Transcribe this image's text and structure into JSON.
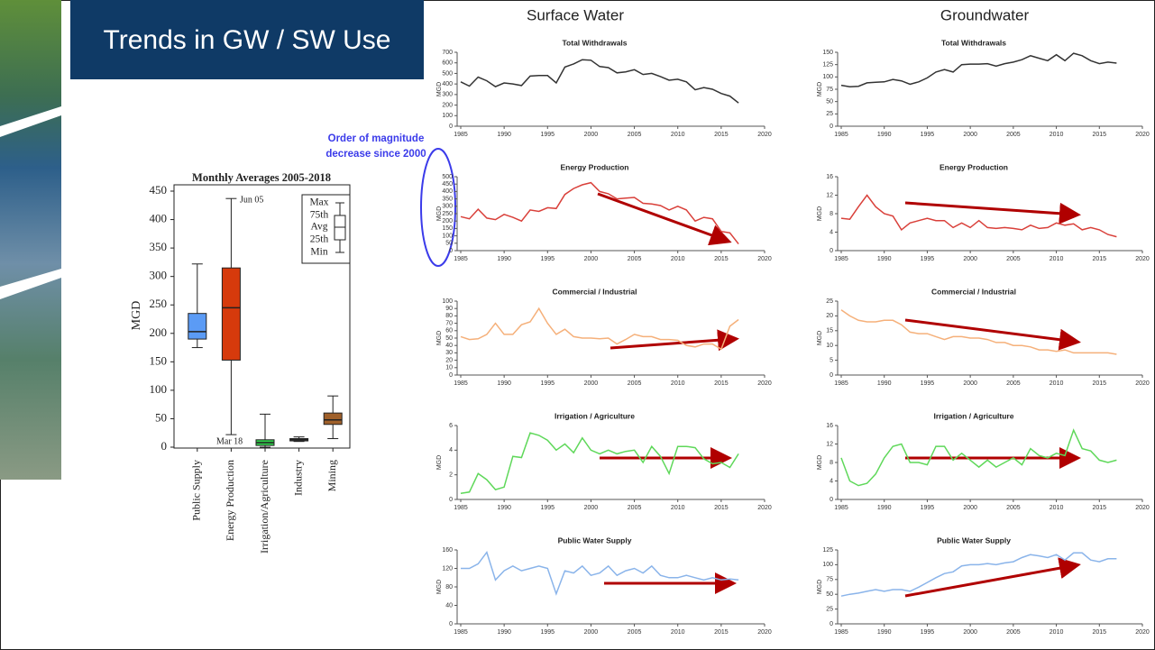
{
  "slide": {
    "title": "Trends in GW / SW Use",
    "columns": [
      "Surface Water",
      "Groundwater"
    ],
    "annotation": [
      "Order of magnitude",
      "decrease since 2000"
    ]
  },
  "chart_data": [
    {
      "type": "box",
      "title": "Monthly Averages 2005-2018",
      "ylabel": "MGD",
      "categories": [
        "Public Supply",
        "Energy Production",
        "Irrigation/Agriculture",
        "Industry",
        "Mining"
      ],
      "boxes": [
        {
          "min": 175,
          "q1": 190,
          "median": 203,
          "q3": 235,
          "max": 322
        },
        {
          "min": 22,
          "q1": 153,
          "median": 245,
          "q3": 315,
          "max": 437
        },
        {
          "min": 0,
          "q1": 3,
          "median": 8,
          "q3": 13,
          "max": 58
        },
        {
          "min": 10,
          "q1": 11,
          "median": 13,
          "q3": 15,
          "max": 18
        },
        {
          "min": 15,
          "q1": 40,
          "median": 48,
          "q3": 60,
          "max": 90
        }
      ],
      "colors": [
        "#5b9bf5",
        "#d63a0c",
        "#2fcf4a",
        "#9a9a9a",
        "#a0602a"
      ],
      "annotations": [
        "Jun 05",
        "Mar 18"
      ],
      "legend_labels": [
        "Max",
        "75th",
        "Avg",
        "25th",
        "Min"
      ],
      "ylim": [
        0,
        450
      ],
      "yticks": [
        0,
        50,
        100,
        150,
        200,
        250,
        300,
        350,
        400,
        450
      ]
    },
    {
      "type": "line",
      "title": "Total Withdrawals",
      "ylabel": "MGD",
      "color": "#333333",
      "x": [
        1985,
        1986,
        1987,
        1988,
        1989,
        1990,
        1991,
        1992,
        1993,
        1994,
        1995,
        1996,
        1997,
        1998,
        1999,
        2000,
        2001,
        2002,
        2003,
        2004,
        2005,
        2006,
        2007,
        2008,
        2009,
        2010,
        2011,
        2012,
        2013,
        2014,
        2015,
        2016,
        2017
      ],
      "values": [
        420,
        380,
        465,
        430,
        375,
        410,
        400,
        385,
        475,
        480,
        480,
        410,
        560,
        590,
        630,
        625,
        565,
        555,
        505,
        515,
        535,
        490,
        500,
        470,
        435,
        445,
        420,
        345,
        365,
        350,
        310,
        285,
        220
      ],
      "xlim": [
        1985,
        2020
      ],
      "xticks": [
        1985,
        1990,
        1995,
        2000,
        2005,
        2010,
        2015,
        2020
      ],
      "ylim": [
        0,
        700
      ],
      "yticks": [
        0,
        100,
        200,
        300,
        400,
        500,
        600,
        700
      ]
    },
    {
      "type": "line",
      "title": "Total Withdrawals",
      "ylabel": "MGD",
      "color": "#333333",
      "x": [
        1985,
        1986,
        1987,
        1988,
        1989,
        1990,
        1991,
        1992,
        1993,
        1994,
        1995,
        1996,
        1997,
        1998,
        1999,
        2000,
        2001,
        2002,
        2003,
        2004,
        2005,
        2006,
        2007,
        2008,
        2009,
        2010,
        2011,
        2012,
        2013,
        2014,
        2015,
        2016,
        2017
      ],
      "values": [
        83,
        80,
        81,
        88,
        89,
        90,
        95,
        92,
        85,
        90,
        98,
        110,
        115,
        110,
        125,
        126,
        126,
        127,
        122,
        127,
        130,
        135,
        143,
        138,
        133,
        145,
        133,
        148,
        143,
        133,
        127,
        130,
        128
      ],
      "xlim": [
        1985,
        2020
      ],
      "xticks": [
        1985,
        1990,
        1995,
        2000,
        2005,
        2010,
        2015,
        2020
      ],
      "ylim": [
        0,
        150
      ],
      "yticks": [
        0,
        25,
        50,
        75,
        100,
        125,
        150
      ]
    },
    {
      "type": "line",
      "title": "Energy Production",
      "ylabel": "MGD",
      "color": "#d9403a",
      "x": [
        1985,
        1986,
        1987,
        1988,
        1989,
        1990,
        1991,
        1992,
        1993,
        1994,
        1995,
        1996,
        1997,
        1998,
        1999,
        2000,
        2001,
        2002,
        2003,
        2004,
        2005,
        2006,
        2007,
        2008,
        2009,
        2010,
        2011,
        2012,
        2013,
        2014,
        2015,
        2016,
        2017
      ],
      "values": [
        230,
        215,
        280,
        220,
        210,
        245,
        225,
        200,
        275,
        265,
        290,
        285,
        380,
        420,
        445,
        460,
        400,
        385,
        350,
        355,
        360,
        320,
        315,
        305,
        275,
        300,
        275,
        200,
        225,
        215,
        130,
        120,
        45
      ],
      "xlim": [
        1985,
        2020
      ],
      "xticks": [
        1985,
        1990,
        1995,
        2000,
        2005,
        2010,
        2015,
        2020
      ],
      "ylim": [
        0,
        500
      ],
      "yticks": [
        0,
        50,
        100,
        150,
        200,
        250,
        300,
        350,
        400,
        450,
        500
      ]
    },
    {
      "type": "line",
      "title": "Energy Production",
      "ylabel": "MGD",
      "color": "#d9403a",
      "x": [
        1985,
        1986,
        1987,
        1988,
        1989,
        1990,
        1991,
        1992,
        1993,
        1994,
        1995,
        1996,
        1997,
        1998,
        1999,
        2000,
        2001,
        2002,
        2003,
        2004,
        2005,
        2006,
        2007,
        2008,
        2009,
        2010,
        2011,
        2012,
        2013,
        2014,
        2015,
        2016,
        2017
      ],
      "values": [
        7,
        6.8,
        9.5,
        12,
        9.5,
        8,
        7.5,
        4.5,
        6,
        6.5,
        7,
        6.5,
        6.5,
        5,
        6,
        5,
        6.5,
        5,
        4.8,
        5,
        4.8,
        4.5,
        5.5,
        4.8,
        5,
        6,
        5.5,
        5.8,
        4.5,
        5,
        4.5,
        3.5,
        3
      ],
      "xlim": [
        1985,
        2020
      ],
      "xticks": [
        1985,
        1990,
        1995,
        2000,
        2005,
        2010,
        2015,
        2020
      ],
      "ylim": [
        0,
        16
      ],
      "yticks": [
        0,
        4,
        8,
        12,
        16
      ]
    },
    {
      "type": "line",
      "title": "Commercial / Industrial",
      "ylabel": "MGD",
      "color": "#f5b07a",
      "x": [
        1985,
        1986,
        1987,
        1988,
        1989,
        1990,
        1991,
        1992,
        1993,
        1994,
        1995,
        1996,
        1997,
        1998,
        1999,
        2000,
        2001,
        2002,
        2003,
        2004,
        2005,
        2006,
        2007,
        2008,
        2009,
        2010,
        2011,
        2012,
        2013,
        2014,
        2015,
        2016,
        2017
      ],
      "values": [
        52,
        48,
        49,
        55,
        70,
        55,
        55,
        68,
        72,
        90,
        70,
        55,
        62,
        52,
        50,
        50,
        49,
        50,
        42,
        48,
        55,
        52,
        52,
        48,
        48,
        47,
        40,
        38,
        42,
        42,
        35,
        66,
        75
      ],
      "xlim": [
        1985,
        2020
      ],
      "xticks": [
        1985,
        1990,
        1995,
        2000,
        2005,
        2010,
        2015,
        2020
      ],
      "ylim": [
        0,
        100
      ],
      "yticks": [
        0,
        10,
        20,
        30,
        40,
        50,
        60,
        70,
        80,
        90,
        100
      ]
    },
    {
      "type": "line",
      "title": "Commercial / Industrial",
      "ylabel": "MGD",
      "color": "#f5b07a",
      "x": [
        1985,
        1986,
        1987,
        1988,
        1989,
        1990,
        1991,
        1992,
        1993,
        1994,
        1995,
        1996,
        1997,
        1998,
        1999,
        2000,
        2001,
        2002,
        2003,
        2004,
        2005,
        2006,
        2007,
        2008,
        2009,
        2010,
        2011,
        2012,
        2013,
        2014,
        2015,
        2016,
        2017
      ],
      "values": [
        22,
        20,
        18.5,
        18,
        18,
        18.5,
        18.5,
        17,
        14.5,
        14,
        14,
        13,
        12,
        13,
        13,
        12.5,
        12.5,
        12,
        11,
        11,
        10,
        10,
        9.5,
        8.5,
        8.5,
        8,
        8.5,
        7.5,
        7.5,
        7.5,
        7.5,
        7.5,
        7
      ],
      "xlim": [
        1985,
        2020
      ],
      "xticks": [
        1985,
        1990,
        1995,
        2000,
        2005,
        2010,
        2015,
        2020
      ],
      "ylim": [
        0,
        25
      ],
      "yticks": [
        0,
        5,
        10,
        15,
        20,
        25
      ]
    },
    {
      "type": "line",
      "title": "Irrigation / Agriculture",
      "ylabel": "MGD",
      "color": "#5fd85a",
      "x": [
        1985,
        1986,
        1987,
        1988,
        1989,
        1990,
        1991,
        1992,
        1993,
        1994,
        1995,
        1996,
        1997,
        1998,
        1999,
        2000,
        2001,
        2002,
        2003,
        2004,
        2005,
        2006,
        2007,
        2008,
        2009,
        2010,
        2011,
        2012,
        2013,
        2014,
        2015,
        2016,
        2017
      ],
      "values": [
        0.5,
        0.6,
        2.1,
        1.6,
        0.8,
        1,
        3.5,
        3.4,
        5.4,
        5.2,
        4.8,
        4,
        4.5,
        3.8,
        5,
        4,
        3.7,
        4,
        3.7,
        3.9,
        4,
        3,
        4.3,
        3.5,
        2.1,
        4.3,
        4.3,
        4.2,
        3.3,
        2.9,
        3,
        2.6,
        3.7
      ],
      "xlim": [
        1985,
        2020
      ],
      "xticks": [
        1985,
        1990,
        1995,
        2000,
        2005,
        2010,
        2015,
        2020
      ],
      "ylim": [
        0,
        6
      ],
      "yticks": [
        0,
        2,
        4,
        6
      ]
    },
    {
      "type": "line",
      "title": "Irrigation / Agriculture",
      "ylabel": "MGD",
      "color": "#5fd85a",
      "x": [
        1985,
        1986,
        1987,
        1988,
        1989,
        1990,
        1991,
        1992,
        1993,
        1994,
        1995,
        1996,
        1997,
        1998,
        1999,
        2000,
        2001,
        2002,
        2003,
        2004,
        2005,
        2006,
        2007,
        2008,
        2009,
        2010,
        2011,
        2012,
        2013,
        2014,
        2015,
        2016,
        2017
      ],
      "values": [
        9,
        4,
        3,
        3.5,
        5.5,
        9,
        11.5,
        12,
        8,
        8,
        7.5,
        11.5,
        11.5,
        8.5,
        10,
        8.5,
        7,
        8.5,
        7,
        8,
        9,
        7.5,
        11,
        9.5,
        9,
        10,
        9.5,
        15,
        11,
        10.5,
        8.5,
        8,
        8.5
      ],
      "xlim": [
        1985,
        2020
      ],
      "xticks": [
        1985,
        1990,
        1995,
        2000,
        2005,
        2010,
        2015,
        2020
      ],
      "ylim": [
        0,
        16
      ],
      "yticks": [
        0,
        4,
        8,
        12,
        16
      ]
    },
    {
      "type": "line",
      "title": "Public Water Supply",
      "ylabel": "MGD",
      "color": "#8ab4ea",
      "x": [
        1985,
        1986,
        1987,
        1988,
        1989,
        1990,
        1991,
        1992,
        1993,
        1994,
        1995,
        1996,
        1997,
        1998,
        1999,
        2000,
        2001,
        2002,
        2003,
        2004,
        2005,
        2006,
        2007,
        2008,
        2009,
        2010,
        2011,
        2012,
        2013,
        2014,
        2015,
        2016,
        2017
      ],
      "values": [
        120,
        120,
        130,
        155,
        95,
        115,
        125,
        115,
        120,
        125,
        120,
        65,
        115,
        110,
        125,
        105,
        110,
        125,
        105,
        115,
        120,
        110,
        125,
        105,
        100,
        100,
        105,
        100,
        95,
        100,
        95,
        97,
        95
      ],
      "xlim": [
        1985,
        2020
      ],
      "xticks": [
        1985,
        1990,
        1995,
        2000,
        2005,
        2010,
        2015,
        2020
      ],
      "ylim": [
        0,
        160
      ],
      "yticks": [
        0,
        40,
        80,
        120,
        160
      ]
    },
    {
      "type": "line",
      "title": "Public Water Supply",
      "ylabel": "MGD",
      "color": "#8ab4ea",
      "x": [
        1985,
        1986,
        1987,
        1988,
        1989,
        1990,
        1991,
        1992,
        1993,
        1994,
        1995,
        1996,
        1997,
        1998,
        1999,
        2000,
        2001,
        2002,
        2003,
        2004,
        2005,
        2006,
        2007,
        2008,
        2009,
        2010,
        2011,
        2012,
        2013,
        2014,
        2015,
        2016,
        2017
      ],
      "values": [
        47,
        50,
        52,
        55,
        58,
        55,
        58,
        58,
        55,
        62,
        70,
        78,
        85,
        88,
        98,
        100,
        100,
        102,
        100,
        103,
        105,
        112,
        117,
        115,
        112,
        117,
        108,
        120,
        120,
        108,
        105,
        110,
        110
      ],
      "xlim": [
        1985,
        2020
      ],
      "xticks": [
        1985,
        1990,
        1995,
        2000,
        2005,
        2010,
        2015,
        2020
      ],
      "ylim": [
        0,
        125
      ],
      "yticks": [
        0,
        25,
        50,
        75,
        100,
        125
      ]
    }
  ]
}
